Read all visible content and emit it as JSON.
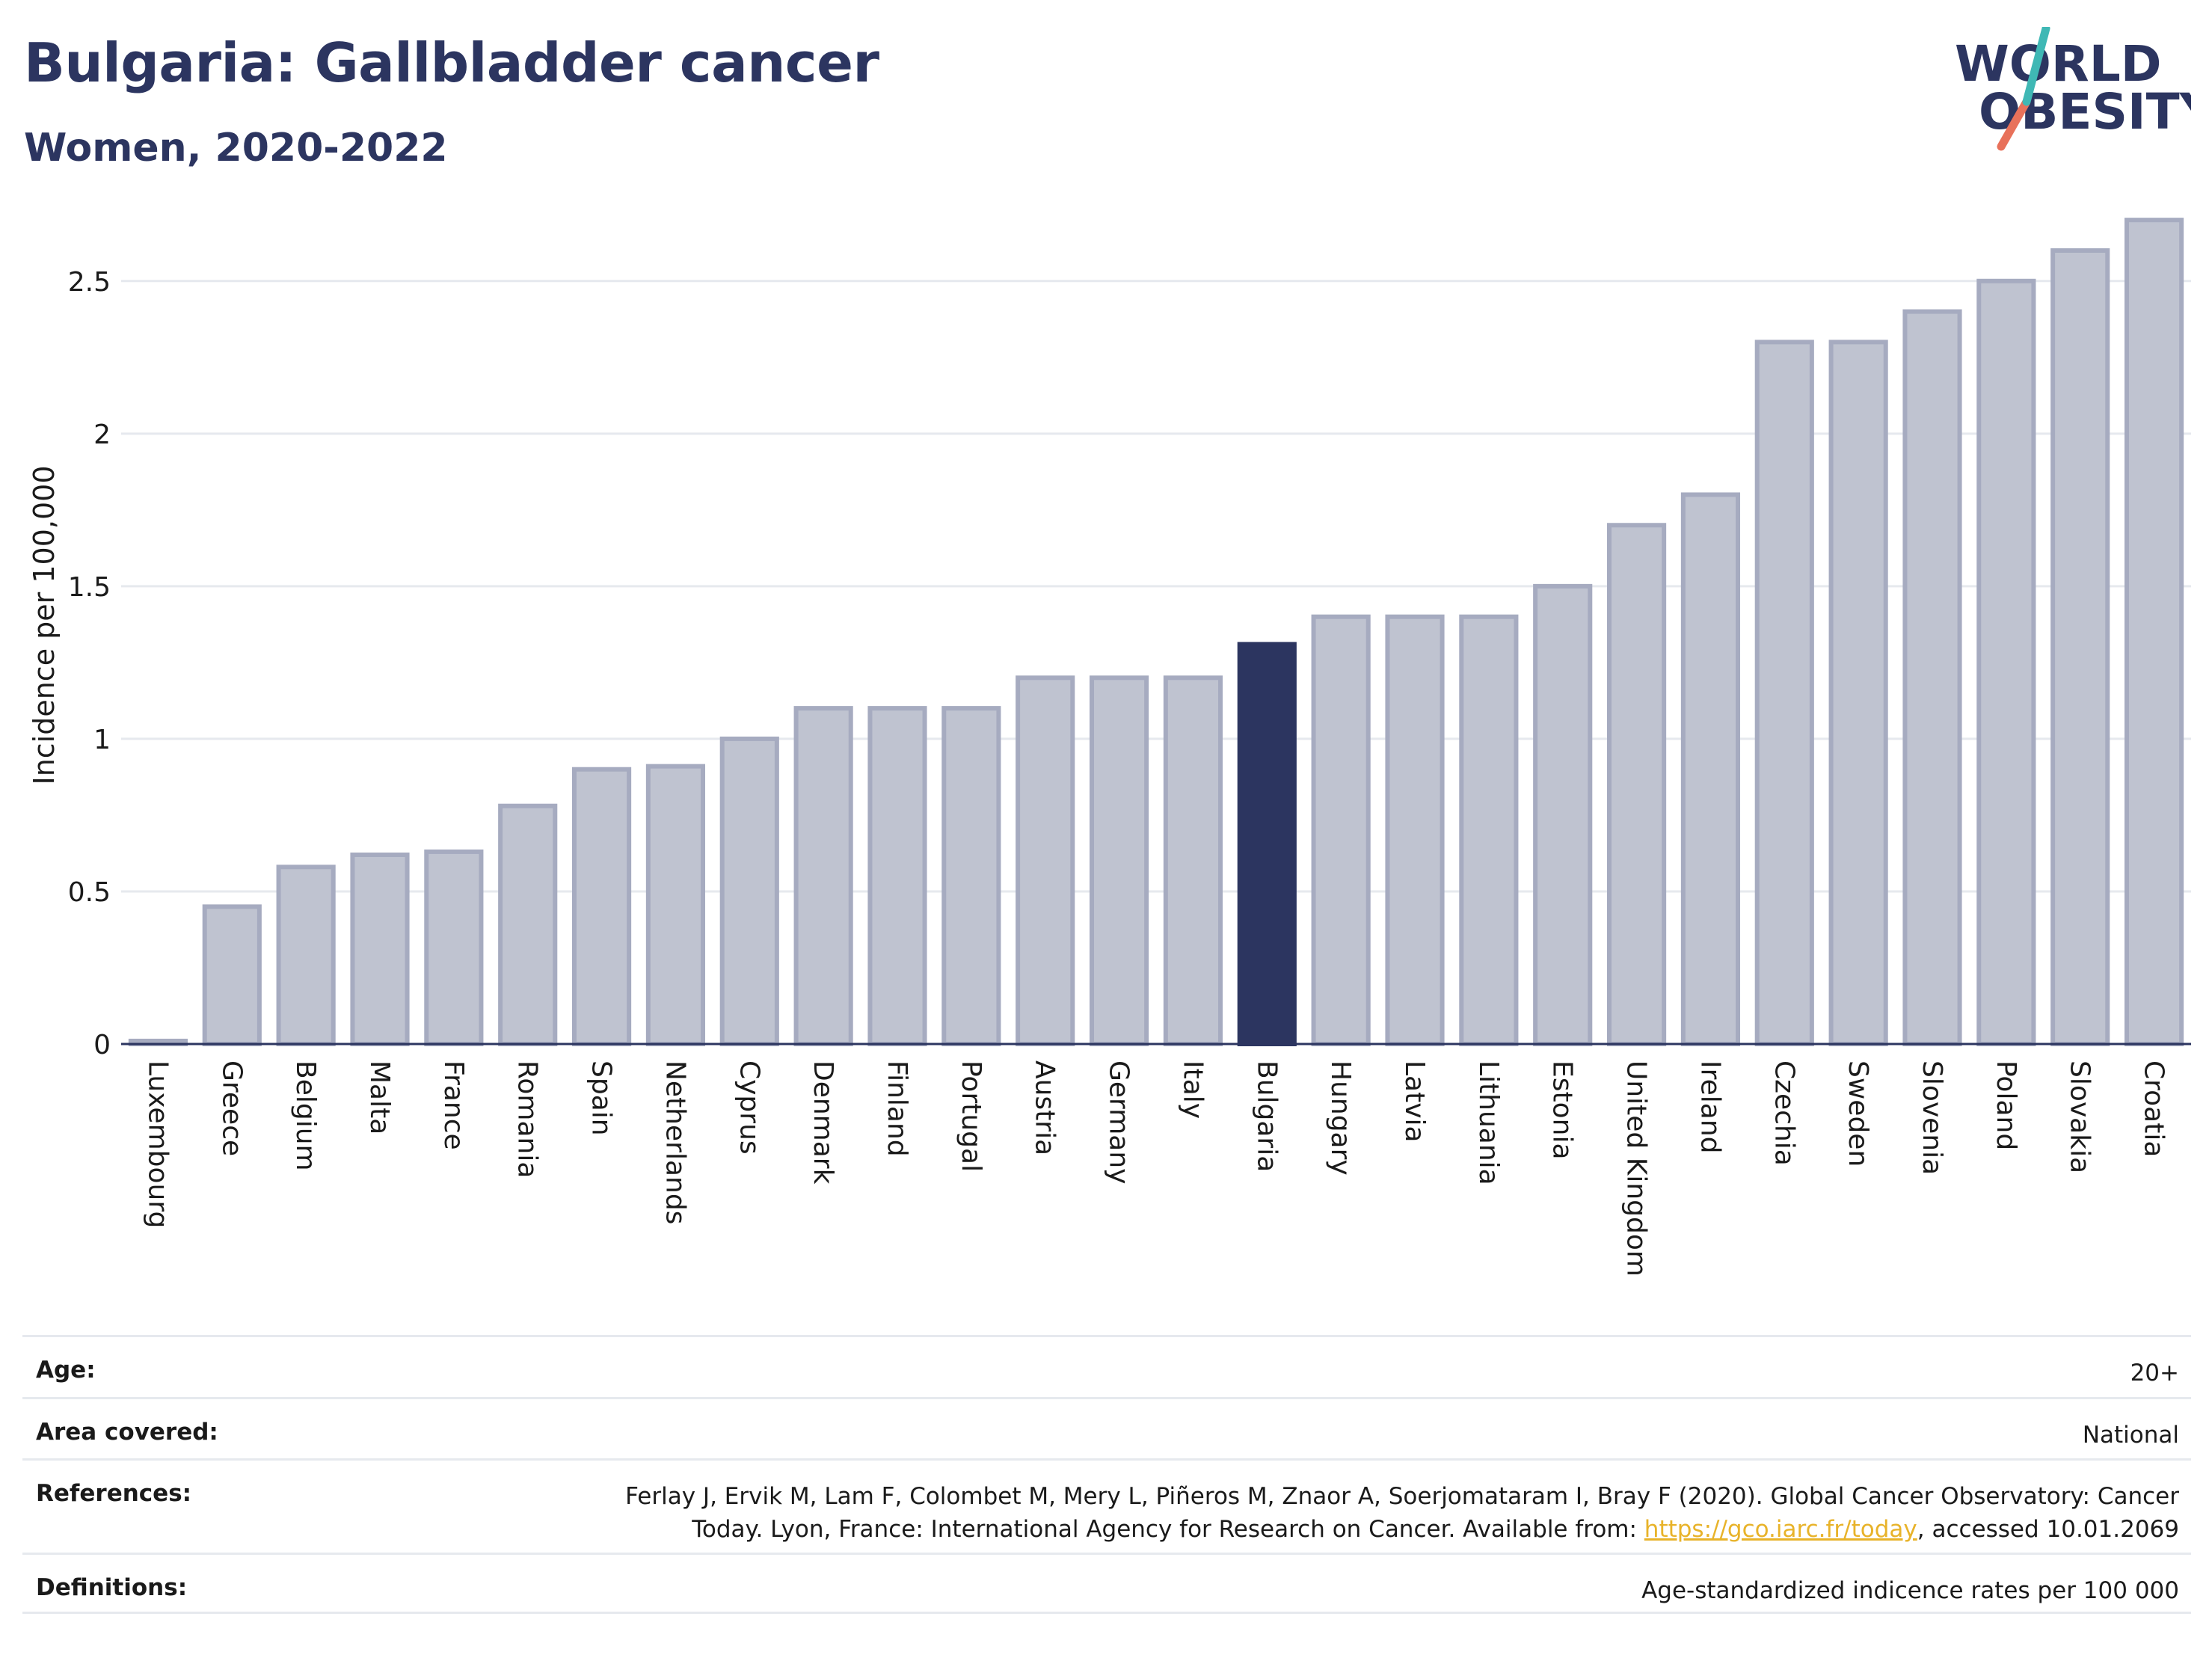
{
  "header": {
    "title": "Bulgaria: Gallbladder cancer",
    "subtitle": "Women, 2020-2022",
    "logo_line1": "WORLD",
    "logo_line2": "OBESITY"
  },
  "colors": {
    "title": "#2c3560",
    "bar_default": "#bfc3d0",
    "bar_default_stroke": "#a6abc0",
    "bar_highlight": "#2c3560",
    "logo_teal": "#3fb8b5",
    "logo_coral": "#e8715a",
    "link": "#e8b32a"
  },
  "chart_data": {
    "type": "bar",
    "ylabel": "Incidence per 100,000",
    "ylim": [
      0,
      2.72
    ],
    "yticks": [
      0,
      0.5,
      1,
      1.5,
      2,
      2.5
    ],
    "ytick_labels": [
      "0",
      "0.5",
      "1",
      "1.5",
      "2",
      "2.5"
    ],
    "grid": true,
    "highlight": "Bulgaria",
    "categories": [
      "Luxembourg",
      "Greece",
      "Belgium",
      "Malta",
      "France",
      "Romania",
      "Spain",
      "Netherlands",
      "Cyprus",
      "Denmark",
      "Finland",
      "Portugal",
      "Austria",
      "Germany",
      "Italy",
      "Bulgaria",
      "Hungary",
      "Latvia",
      "Lithuania",
      "Estonia",
      "United Kingdom",
      "Ireland",
      "Czechia",
      "Sweden",
      "Slovenia",
      "Poland",
      "Slovakia",
      "Croatia"
    ],
    "values": [
      0.01,
      0.45,
      0.58,
      0.62,
      0.63,
      0.78,
      0.9,
      0.91,
      1.0,
      1.1,
      1.1,
      1.1,
      1.2,
      1.2,
      1.2,
      1.31,
      1.4,
      1.4,
      1.4,
      1.5,
      1.7,
      1.8,
      2.3,
      2.3,
      2.4,
      2.5,
      2.6,
      2.7
    ]
  },
  "info": {
    "age_label": "Age:",
    "age_value": "20+",
    "area_label": "Area covered:",
    "area_value": "National",
    "refs_label": "References:",
    "refs_line1": "Ferlay J, Ervik M, Lam F, Colombet M, Mery L, Piñeros M, Znaor A, Soerjomataram I, Bray F (2020). Global Cancer Observatory: Cancer",
    "refs_line2_pre": "Today. Lyon, France: International Agency for Research on Cancer. Available from: ",
    "refs_link": "https://gco.iarc.fr/today",
    "refs_line2_post": ", accessed 10.01.2069",
    "defs_label": "Definitions:",
    "defs_value": "Age-standardized indicence rates per 100 000"
  }
}
